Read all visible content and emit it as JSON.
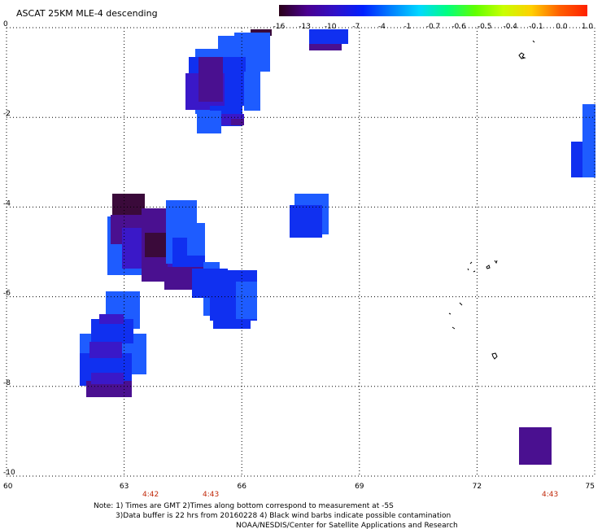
{
  "title": "ASCAT 25KM MLE-4 descending",
  "colorbar": {
    "labels": [
      "-16",
      "-13",
      "-10",
      "-7",
      "-4",
      "-1",
      "-0.7",
      "-0.6",
      "-0.5",
      "-0.4",
      "-0.1",
      "0.0",
      "1.0"
    ],
    "colors": [
      "#2a0018",
      "#4a0090",
      "#3010c8",
      "#0020ff",
      "#0080ff",
      "#00d8ff",
      "#00ff80",
      "#60ff00",
      "#c8ff00",
      "#ffd000",
      "#ff6000",
      "#ff2000"
    ]
  },
  "axes": {
    "x_ticks": [
      "60",
      "63",
      "66",
      "69",
      "72",
      "75"
    ],
    "y_ticks": [
      "0",
      "-2",
      "-4",
      "-6",
      "-8",
      "-10"
    ],
    "x_range": [
      60,
      75
    ],
    "y_range": [
      0,
      -10
    ]
  },
  "times": [
    "4:42",
    "4:43",
    "4:43"
  ],
  "notes": {
    "line1": "Note: 1) Times are GMT 2)Times along bottom correspond to measurement at -5S",
    "line2": "3)Data buffer is 22 hrs from 20160228 4) Black wind barbs indicate possible contamination",
    "line3": "NOAA/NESDIS/Center for Satellite Applications and Research"
  },
  "colors": {
    "dark_purple": "#3a0a3a",
    "purple": "#4a1090",
    "indigo": "#3a18c8",
    "blue": "#1030f0",
    "light_blue": "#1e5cff",
    "time_red": "#c0290a"
  }
}
